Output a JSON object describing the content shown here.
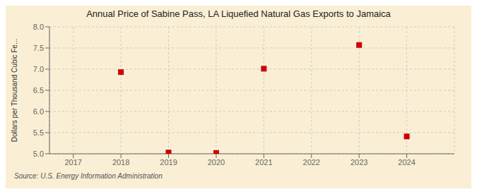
{
  "chart_data": {
    "type": "scatter",
    "title": "Annual Price of Sabine Pass, LA Liquefied Natural Gas Exports to Jamaica",
    "ylabel": "Dollars per Thousand Cubic Fe...",
    "annotations": [
      "Source: U.S. Energy Information Administration"
    ],
    "x": [
      2018,
      2019,
      2020,
      2021,
      2023,
      2024
    ],
    "values": [
      6.93,
      5.03,
      5.02,
      7.01,
      7.57,
      5.41
    ],
    "color": "#cc0000",
    "marker": "square",
    "xlim": [
      2016.5,
      2025.0
    ],
    "ylim": [
      5.0,
      8.0
    ],
    "xticks": [
      2017,
      2018,
      2019,
      2020,
      2021,
      2022,
      2023,
      2024
    ],
    "yticks": [
      {
        "value": 5,
        "label": "5.0"
      },
      5.5,
      {
        "value": 6,
        "label": "6.0"
      },
      6.5,
      {
        "value": 7,
        "label": "7.0"
      },
      7.5,
      {
        "value": 8,
        "label": "8.0"
      }
    ],
    "grid": true
  }
}
